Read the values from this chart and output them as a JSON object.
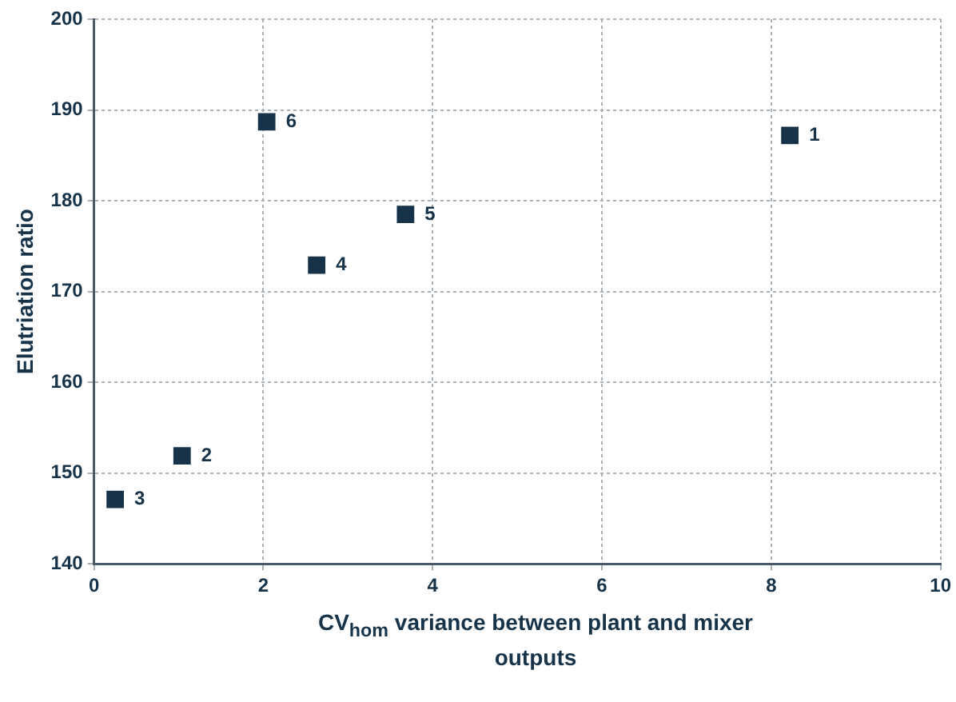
{
  "chart_data": {
    "type": "scatter",
    "xlabel": "CV$_{hom}$ variance between plant and mixer outputs",
    "ylabel": "Elutriation ratio",
    "x": [
      8.22,
      1.04,
      0.25,
      2.63,
      3.68,
      2.04
    ],
    "series": [
      {
        "color": "#17334a",
        "values": [
          187.2,
          151.9,
          147.1,
          172.9,
          178.5,
          188.7
        ]
      }
    ],
    "annotations": [
      {
        "text": "1",
        "x": 8.22,
        "y": 187.2
      },
      {
        "text": "2",
        "x": 1.04,
        "y": 151.9
      },
      {
        "text": "3",
        "x": 0.25,
        "y": 147.1
      },
      {
        "text": "4",
        "x": 2.63,
        "y": 172.9
      },
      {
        "text": "5",
        "x": 3.68,
        "y": 178.5
      },
      {
        "text": "6",
        "x": 2.04,
        "y": 188.7
      }
    ],
    "xlim": [
      0,
      10
    ],
    "xticks": [
      0,
      2,
      4,
      6,
      8,
      10
    ],
    "ylim": [
      140,
      200
    ],
    "yticks": [
      140,
      150,
      160,
      170,
      180,
      190,
      200
    ],
    "grid": true,
    "legend": false,
    "marker": "square"
  }
}
